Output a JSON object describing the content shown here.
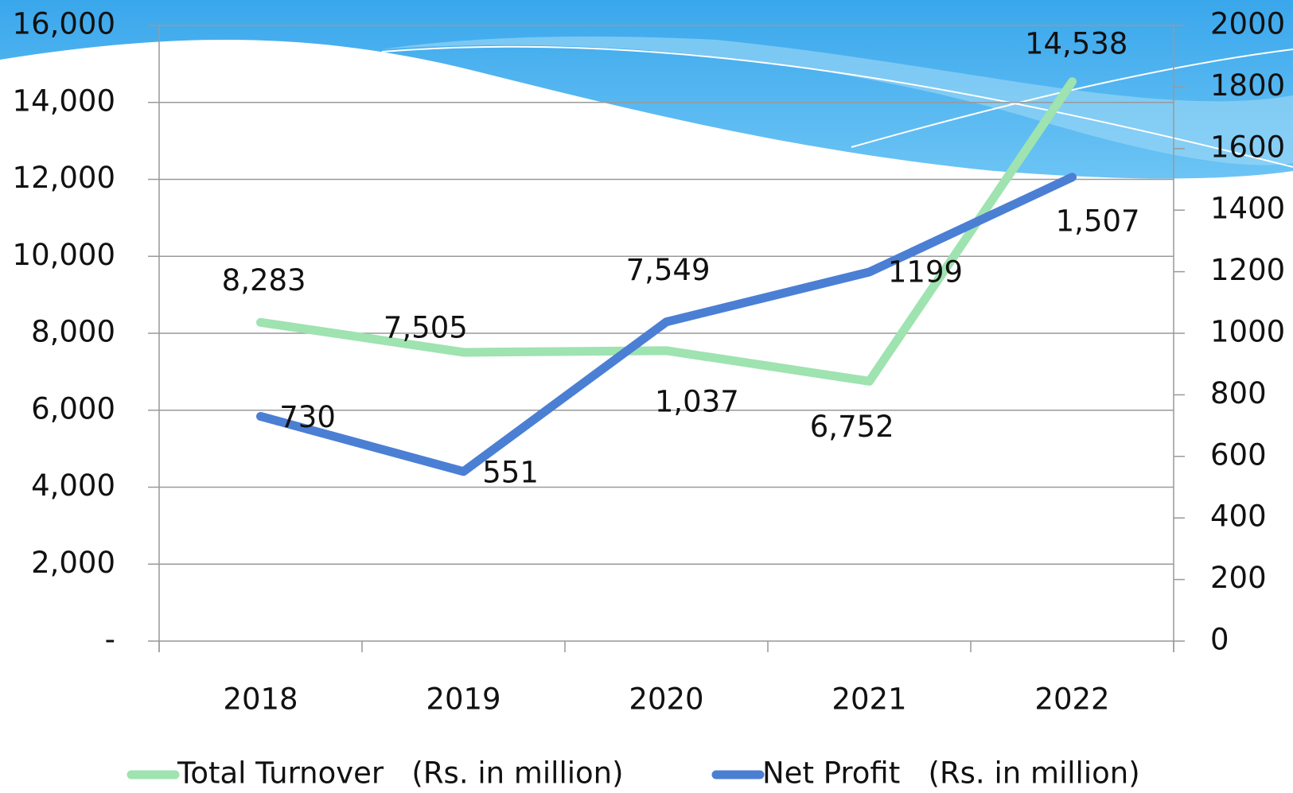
{
  "chart_data": {
    "type": "line",
    "categories": [
      "2018",
      "2019",
      "2020",
      "2021",
      "2022"
    ],
    "series": [
      {
        "name": "Total Turnover   (Rs. in million)",
        "color": "#9ee3b0",
        "values": [
          8283,
          7505,
          7549,
          6752,
          14538
        ],
        "value_labels": [
          "8,283",
          "7,505",
          "7,549",
          "6,752",
          "14,538"
        ]
      },
      {
        "name": "Net Profit   (Rs. in million)",
        "color": "#4a7fd4",
        "axis": "y2",
        "values": [
          730,
          551,
          1037,
          1199,
          1507
        ],
        "value_labels": [
          "730",
          "551",
          "1,037",
          "1199",
          "1,507"
        ]
      }
    ],
    "ylim": [
      0,
      16000
    ],
    "yticks": [
      {
        "value": 0,
        "label": "-"
      },
      {
        "value": 2000,
        "label": "2,000"
      },
      {
        "value": 4000,
        "label": "4,000"
      },
      {
        "value": 6000,
        "label": "6,000"
      },
      {
        "value": 8000,
        "label": "8,000"
      },
      {
        "value": 10000,
        "label": "10,000"
      },
      {
        "value": 12000,
        "label": "12,000"
      },
      {
        "value": 14000,
        "label": "14,000"
      },
      {
        "value": 16000,
        "label": "16,000"
      }
    ],
    "y2lim": [
      0,
      2000
    ],
    "y2ticks": [
      0,
      200,
      400,
      600,
      800,
      1000,
      1200,
      1400,
      1600,
      1800,
      2000
    ],
    "grid": true,
    "legend": "bottom"
  }
}
